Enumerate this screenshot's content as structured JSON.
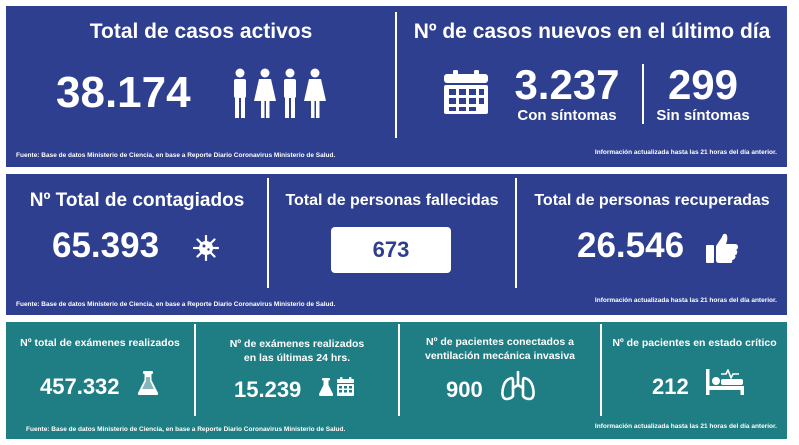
{
  "section1": {
    "active": {
      "title": "Total de casos activos",
      "value": "38.174",
      "icon": "people-icon"
    },
    "new_cases": {
      "title": "Nº de casos nuevos en el último día",
      "symptomatic_value": "3.237",
      "symptomatic_label": "Con síntomas",
      "asymptomatic_value": "299",
      "asymptomatic_label": "Sin síntomas",
      "icon": "calendar-icon"
    },
    "source": "Fuente: Base de datos Ministerio de Ciencia, en base a Reporte Diario Coronavirus Ministerio de Salud.",
    "updated": "Información actualizada hasta las 21 horas  del día anterior."
  },
  "section2": {
    "infected": {
      "title": "Nº Total de contagiados",
      "value": "65.393",
      "icon": "virus-icon"
    },
    "deceased": {
      "title": "Total de personas fallecidas",
      "value": "673"
    },
    "recovered": {
      "title": "Total de personas recuperadas",
      "value": "26.546",
      "icon": "thumbs-up-icon"
    },
    "source": "Fuente: Base de datos Ministerio de Ciencia, en base a Reporte Diario Coronavirus Ministerio de Salud.",
    "updated": "Información actualizada hasta las 21 horas  del día anterior."
  },
  "section3": {
    "exams_total": {
      "title": "Nº total de exámenes realizados",
      "value": "457.332",
      "icon": "flask-icon"
    },
    "exams_24h": {
      "title_line1": "Nº de exámenes realizados",
      "title_line2": "en las últimas 24 hrs.",
      "value": "15.239",
      "icon": "flask-calendar-icon"
    },
    "ventilation": {
      "title_line1": "Nº de pacientes conectados a",
      "title_line2": "ventilación mecánica invasiva",
      "value": "900",
      "icon": "lungs-icon"
    },
    "critical": {
      "title": "Nº de pacientes en estado crítico",
      "value": "212",
      "icon": "hospital-bed-icon"
    },
    "source": "Fuente: Base de datos Ministerio de Ciencia, en base a Reporte Diario Coronavirus Ministerio de Salud.",
    "updated": "Información actualizada hasta las 21 horas  del día anterior."
  },
  "colors": {
    "blue_panel": "#2e3f8f",
    "teal_panel": "#1f7d84",
    "text": "#ffffff",
    "deceased_value": "#2e3f8f"
  }
}
